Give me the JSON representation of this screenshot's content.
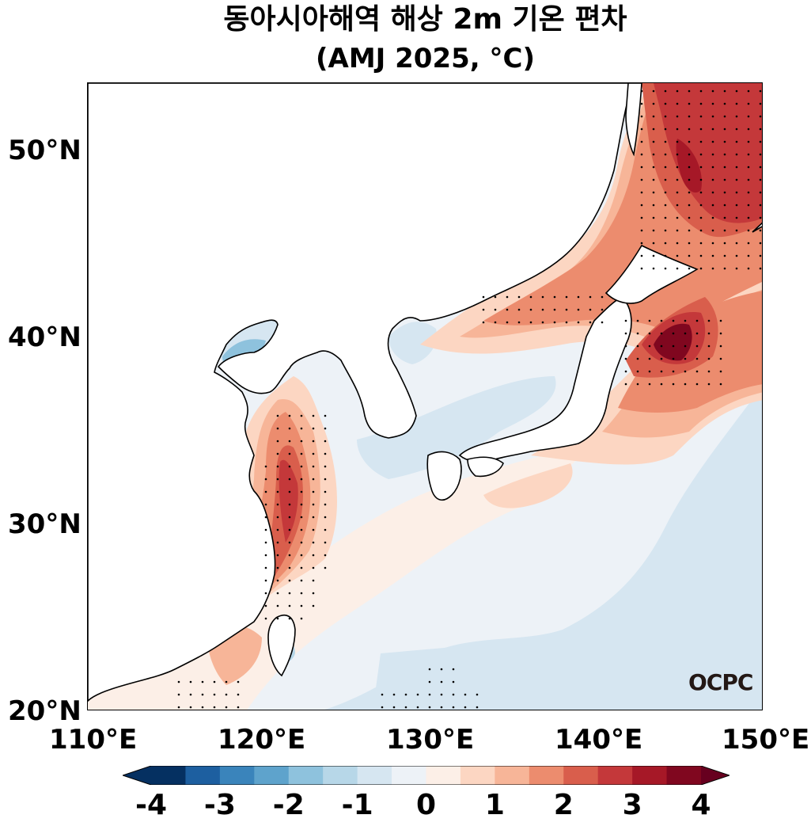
{
  "title": {
    "line1": "동아시아해역 해상 2m 기온 편차",
    "line2": "(AMJ 2025, °C)"
  },
  "axes": {
    "lat_labels": [
      "50°N",
      "40°N",
      "30°N",
      "20°N"
    ],
    "lon_labels": [
      "110°E",
      "120°E",
      "130°E",
      "140°E",
      "150°E"
    ],
    "lon_range": [
      110,
      150
    ],
    "lat_range": [
      20,
      53.5
    ]
  },
  "colorbar": {
    "labels": [
      "-4",
      "-3",
      "-2",
      "-1",
      "0",
      "1",
      "2",
      "3",
      "4"
    ],
    "levels": [
      -4,
      -3.5,
      -3,
      -2.5,
      -2,
      -1.5,
      -1,
      -0.5,
      0,
      0.5,
      1,
      1.5,
      2,
      2.5,
      3,
      3.5,
      4
    ],
    "colors": [
      "#053061",
      "#1d5fa0",
      "#3a84bb",
      "#5ea3cc",
      "#8ec2dd",
      "#b7d7e8",
      "#d6e6f1",
      "#edf2f7",
      "#fcefe7",
      "#fcd6c2",
      "#f7b598",
      "#ec8c6e",
      "#d95e4c",
      "#c4383a",
      "#a61827",
      "#80071f"
    ],
    "extend_min_color": "#053061",
    "extend_max_color": "#67001f"
  },
  "logo": {
    "text": "OCPC"
  }
}
